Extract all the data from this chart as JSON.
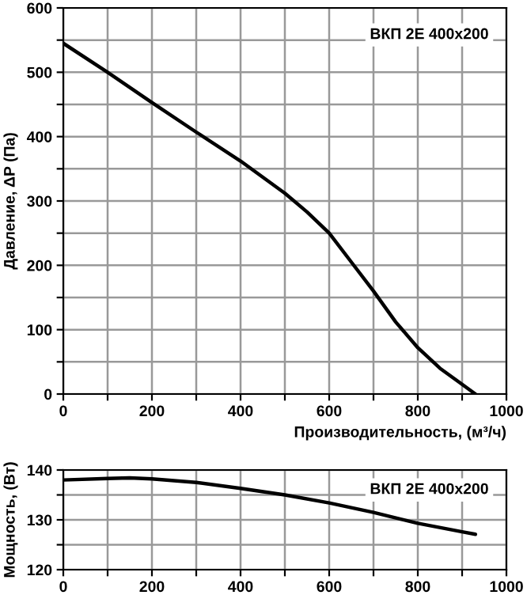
{
  "chart_data": [
    {
      "type": "line",
      "ylabel": "Давление, ΔP (Па)",
      "xlabel": "Производительность, (м³/ч)",
      "annotations": [
        "ВКП 2Е 400x200"
      ],
      "grid": true,
      "xlim": [
        0,
        1000
      ],
      "xticks": [
        0,
        200,
        400,
        600,
        800,
        1000,
        {
          "value": 100,
          "label": null
        },
        {
          "value": 300,
          "label": null
        },
        {
          "value": 500,
          "label": null
        },
        {
          "value": 700,
          "label": null
        },
        {
          "value": 900,
          "label": null
        }
      ],
      "ylim": [
        0,
        600
      ],
      "yticks": [
        0,
        100,
        200,
        300,
        400,
        500,
        600,
        {
          "value": 50,
          "label": null
        },
        {
          "value": 150,
          "label": null
        },
        {
          "value": 250,
          "label": null
        },
        {
          "value": 350,
          "label": null
        },
        {
          "value": 450,
          "label": null
        },
        {
          "value": 550,
          "label": null
        }
      ],
      "series": [
        {
          "color": "#000000",
          "x": [
            0,
            100,
            200,
            300,
            400,
            500,
            550,
            600,
            650,
            700,
            750,
            800,
            850,
            900,
            930
          ],
          "values": [
            545,
            500,
            453,
            407,
            362,
            312,
            283,
            250,
            205,
            160,
            112,
            72,
            40,
            15,
            0
          ]
        }
      ]
    },
    {
      "type": "line",
      "ylabel": "Мощность, (Вт)",
      "annotations": [
        "ВКП 2Е 400x200"
      ],
      "grid": true,
      "xlim": [
        0,
        1000
      ],
      "xticks": [
        0,
        200,
        400,
        600,
        800,
        1000,
        {
          "value": 100,
          "label": null
        },
        {
          "value": 300,
          "label": null
        },
        {
          "value": 500,
          "label": null
        },
        {
          "value": 700,
          "label": null
        },
        {
          "value": 900,
          "label": null
        }
      ],
      "ylim": [
        120,
        140
      ],
      "yticks": [
        120,
        130,
        140,
        {
          "value": 125,
          "label": null
        },
        {
          "value": 135,
          "label": null
        }
      ],
      "series": [
        {
          "color": "#000000",
          "x": [
            0,
            100,
            150,
            200,
            300,
            400,
            500,
            600,
            700,
            800,
            900,
            930
          ],
          "values": [
            138,
            138.3,
            138.4,
            138.2,
            137.5,
            136.3,
            135,
            133.4,
            131.5,
            129.3,
            127.6,
            127.1
          ]
        }
      ]
    }
  ]
}
